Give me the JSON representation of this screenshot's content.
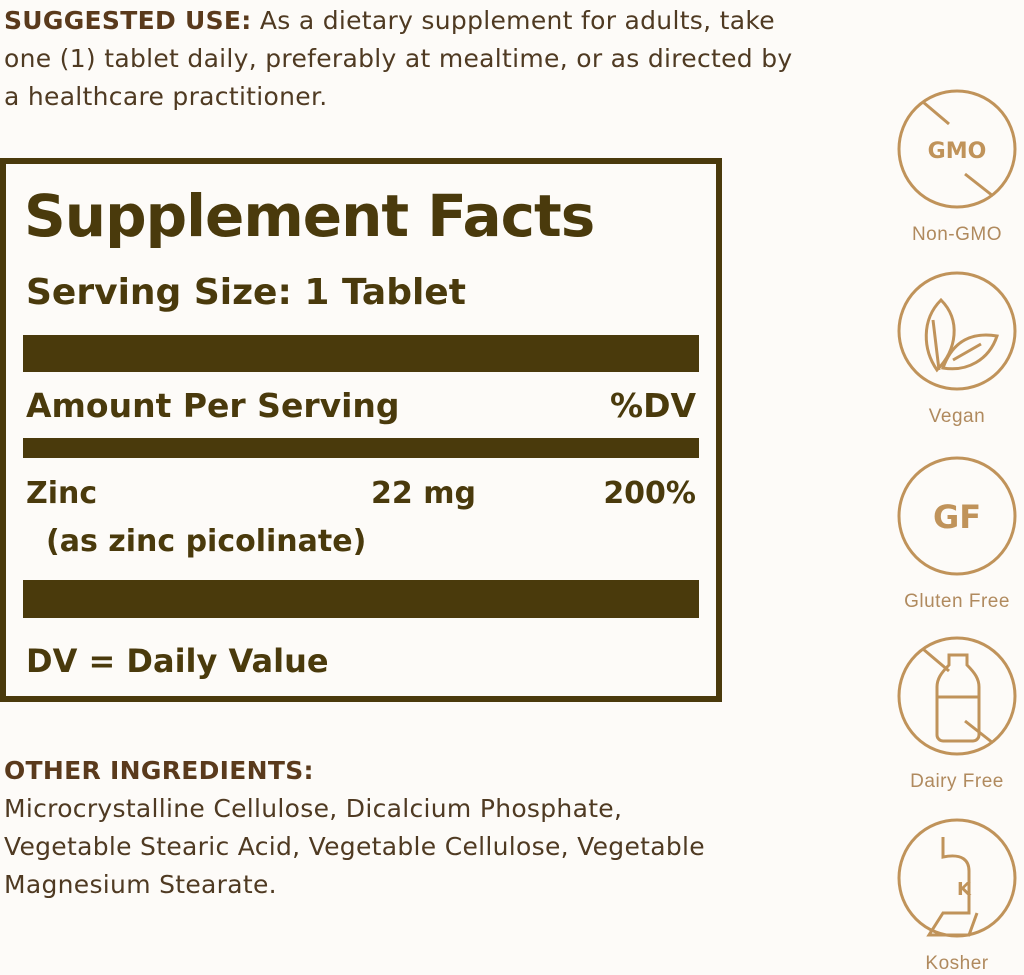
{
  "suggested_use": {
    "heading": "SUGGESTED USE:",
    "text": "As a dietary supplement for adults, take one (1) tablet daily, preferably at mealtime, or as directed by a healthcare practitioner."
  },
  "supplement_facts": {
    "title": "Supplement Facts",
    "serving_size": "Serving Size: 1 Tablet",
    "amount_header": "Amount Per Serving",
    "dv_header": "%DV",
    "nutrients": [
      {
        "name": "Zinc",
        "amount": "22 mg",
        "dv": "200%",
        "form": "(as zinc picolinate)"
      }
    ],
    "footnote": "DV = Daily Value"
  },
  "other_ingredients": {
    "heading": "OTHER INGREDIENTS:",
    "text": "Microcrystalline Cellulose, Dicalcium Phosphate, Vegetable Stearic Acid, Vegetable Cellulose, Vegetable Magnesium Stearate."
  },
  "badges": [
    {
      "label": "Non-GMO",
      "icon": "gmo-crossed-icon",
      "icon_text": "GMO"
    },
    {
      "label": "Vegan",
      "icon": "leaf-icon"
    },
    {
      "label": "Gluten Free",
      "icon": "gf-icon",
      "icon_text": "GF"
    },
    {
      "label": "Dairy Free",
      "icon": "milk-bottle-crossed-icon"
    },
    {
      "label": "Kosher",
      "icon": "kosher-icon",
      "icon_text": "K"
    }
  ],
  "colors": {
    "label_brown": "#4a3a0c",
    "badge_gold": "#c0935a",
    "text_brown": "#4f3a22",
    "background": "#fdfbf8"
  }
}
